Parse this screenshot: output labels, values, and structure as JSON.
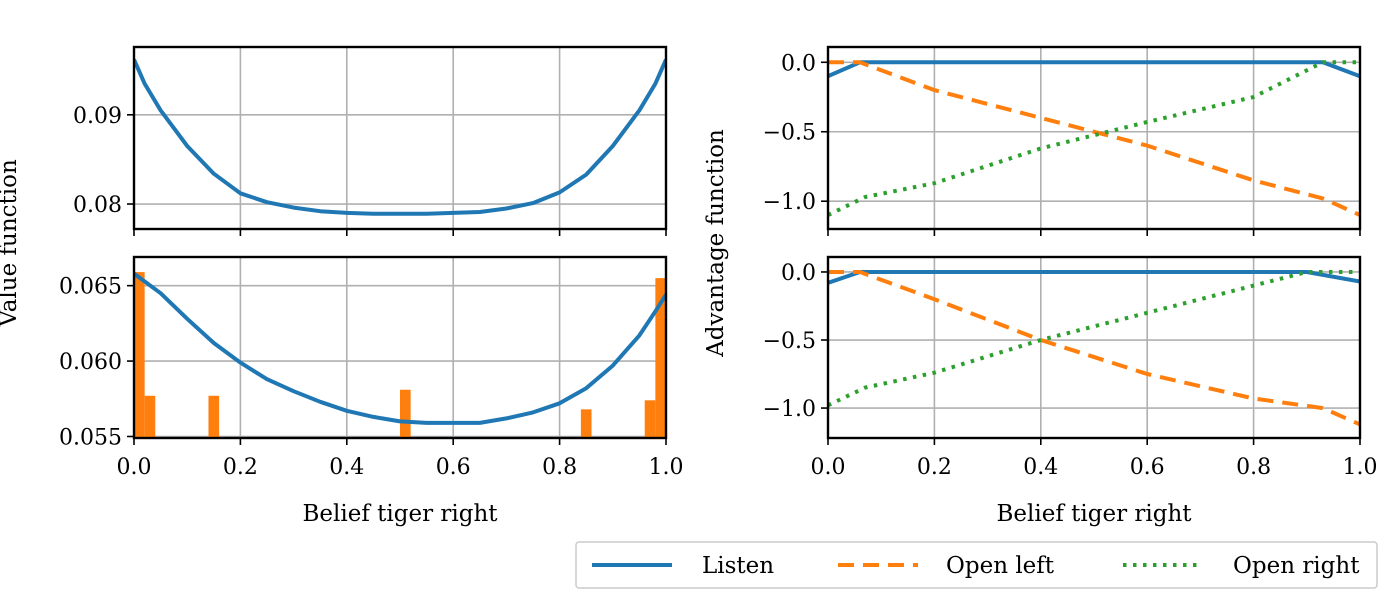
{
  "legend": [
    {
      "name": "Listen",
      "color": "#1f77b4",
      "style": "solid"
    },
    {
      "name": "Open left",
      "color": "#ff7f0e",
      "style": "dashed"
    },
    {
      "name": "Open right",
      "color": "#2ca02c",
      "style": "dotted"
    }
  ],
  "chart_data": [
    {
      "type": "line",
      "panel": "value-top",
      "title": "",
      "xlabel": "",
      "ylabel": "Value function",
      "xlim": [
        0,
        1
      ],
      "ylim": [
        0.0772,
        0.0976
      ],
      "xticks": [
        0,
        0.2,
        0.4,
        0.6,
        0.8,
        1.0
      ],
      "xtick_labels": [
        "",
        "",
        "",
        "",
        "",
        ""
      ],
      "yticks": [
        0.08,
        0.09
      ],
      "ytick_labels": [
        "0.08",
        "0.09"
      ],
      "grid": true,
      "series": [
        {
          "name": "Value",
          "color": "#1f77b4",
          "style": "solid",
          "x": [
            0,
            0.02,
            0.05,
            0.1,
            0.15,
            0.2,
            0.25,
            0.3,
            0.35,
            0.4,
            0.45,
            0.5,
            0.55,
            0.6,
            0.65,
            0.7,
            0.75,
            0.8,
            0.85,
            0.9,
            0.95,
            0.98,
            1.0
          ],
          "y": [
            0.0962,
            0.0935,
            0.0905,
            0.0865,
            0.0834,
            0.0812,
            0.0802,
            0.0796,
            0.0792,
            0.079,
            0.0789,
            0.0789,
            0.0789,
            0.079,
            0.0791,
            0.0795,
            0.0801,
            0.0813,
            0.0833,
            0.0865,
            0.0905,
            0.0935,
            0.0962
          ]
        }
      ]
    },
    {
      "type": "line",
      "panel": "value-bottom",
      "title": "",
      "xlabel": "Belief tiger right",
      "ylabel": "Value function",
      "xlim": [
        0,
        1
      ],
      "ylim": [
        0.0549,
        0.0669
      ],
      "xticks": [
        0,
        0.2,
        0.4,
        0.6,
        0.8,
        1.0
      ],
      "xtick_labels": [
        "0.0",
        "0.2",
        "0.4",
        "0.6",
        "0.8",
        "1.0"
      ],
      "yticks": [
        0.055,
        0.06,
        0.065
      ],
      "ytick_labels": [
        "0.055",
        "0.060",
        "0.065"
      ],
      "grid": true,
      "series": [
        {
          "name": "Value",
          "color": "#1f77b4",
          "style": "solid",
          "x": [
            0,
            0.05,
            0.1,
            0.15,
            0.2,
            0.25,
            0.3,
            0.35,
            0.4,
            0.45,
            0.5,
            0.55,
            0.6,
            0.65,
            0.7,
            0.75,
            0.8,
            0.85,
            0.9,
            0.95,
            0.98,
            1.0
          ],
          "y": [
            0.0658,
            0.0645,
            0.0628,
            0.0612,
            0.0599,
            0.0588,
            0.058,
            0.0573,
            0.0567,
            0.0563,
            0.056,
            0.0559,
            0.0559,
            0.0559,
            0.0562,
            0.0566,
            0.0572,
            0.0582,
            0.0597,
            0.0617,
            0.0633,
            0.0644
          ]
        }
      ],
      "bars": {
        "color": "#ff7f0e",
        "baseline": 0.0549,
        "width": 0.02,
        "x": [
          0.01,
          0.03,
          0.15,
          0.51,
          0.85,
          0.97,
          0.99
        ],
        "y": [
          0.0659,
          0.0577,
          0.0577,
          0.0581,
          0.0568,
          0.0574,
          0.0655
        ]
      }
    },
    {
      "type": "line",
      "panel": "advantage-top",
      "title": "",
      "xlabel": "",
      "ylabel": "Advantage function",
      "xlim": [
        0,
        1
      ],
      "ylim": [
        -1.2,
        0.11
      ],
      "xticks": [
        0,
        0.2,
        0.4,
        0.6,
        0.8,
        1.0
      ],
      "xtick_labels": [
        "",
        "",
        "",
        "",
        "",
        ""
      ],
      "yticks": [
        0.0,
        -0.5,
        -1.0
      ],
      "ytick_labels": [
        "0.0",
        "−0.5",
        "−1.0"
      ],
      "grid": true,
      "series": [
        {
          "name": "Listen",
          "color": "#1f77b4",
          "style": "solid",
          "x": [
            0,
            0.06,
            0.93,
            1.0
          ],
          "y": [
            -0.1,
            0.0,
            0.0,
            -0.1
          ]
        },
        {
          "name": "Open left",
          "color": "#ff7f0e",
          "style": "dashed",
          "x": [
            0,
            0.06,
            0.2,
            0.4,
            0.6,
            0.8,
            0.93,
            1.0
          ],
          "y": [
            0.0,
            0.0,
            -0.2,
            -0.4,
            -0.6,
            -0.85,
            -0.98,
            -1.1
          ]
        },
        {
          "name": "Open right",
          "color": "#2ca02c",
          "style": "dotted",
          "x": [
            0,
            0.07,
            0.2,
            0.4,
            0.6,
            0.8,
            0.93,
            1.0
          ],
          "y": [
            -1.1,
            -0.97,
            -0.87,
            -0.62,
            -0.43,
            -0.25,
            0.0,
            0.0
          ]
        }
      ]
    },
    {
      "type": "line",
      "panel": "advantage-bottom",
      "title": "",
      "xlabel": "Belief tiger right",
      "ylabel": "Advantage function",
      "xlim": [
        0,
        1
      ],
      "ylim": [
        -1.22,
        0.11
      ],
      "xticks": [
        0,
        0.2,
        0.4,
        0.6,
        0.8,
        1.0
      ],
      "xtick_labels": [
        "0.0",
        "0.2",
        "0.4",
        "0.6",
        "0.8",
        "1.0"
      ],
      "yticks": [
        0.0,
        -0.5,
        -1.0
      ],
      "ytick_labels": [
        "0.0",
        "−0.5",
        "−1.0"
      ],
      "grid": true,
      "series": [
        {
          "name": "Listen",
          "color": "#1f77b4",
          "style": "solid",
          "x": [
            0,
            0.06,
            0.9,
            1.0
          ],
          "y": [
            -0.08,
            0.0,
            0.0,
            -0.07
          ]
        },
        {
          "name": "Open left",
          "color": "#ff7f0e",
          "style": "dashed",
          "x": [
            0,
            0.06,
            0.2,
            0.4,
            0.6,
            0.8,
            0.93,
            1.0
          ],
          "y": [
            0.0,
            0.0,
            -0.2,
            -0.5,
            -0.75,
            -0.93,
            -1.0,
            -1.12
          ]
        },
        {
          "name": "Open right",
          "color": "#2ca02c",
          "style": "dotted",
          "x": [
            0,
            0.07,
            0.2,
            0.4,
            0.6,
            0.8,
            0.9,
            1.0
          ],
          "y": [
            -0.98,
            -0.85,
            -0.74,
            -0.5,
            -0.3,
            -0.1,
            0.0,
            0.0
          ]
        }
      ]
    }
  ]
}
